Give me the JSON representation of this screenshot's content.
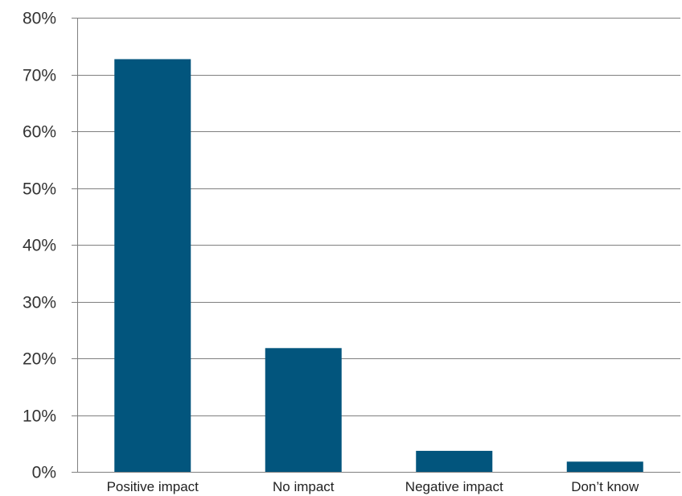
{
  "chart_data": {
    "type": "bar",
    "categories": [
      "Positive impact",
      "No impact",
      "Negative impact",
      "Don’t know"
    ],
    "values": [
      72.7,
      21.8,
      3.7,
      1.8
    ],
    "ylim": [
      0,
      80
    ],
    "yticks": [
      0,
      10,
      20,
      30,
      40,
      50,
      60,
      70,
      80
    ],
    "ytick_labels": [
      "0%",
      "10%",
      "20%",
      "30%",
      "40%",
      "50%",
      "60%",
      "70%",
      "80%"
    ],
    "grid": true,
    "legend": "none",
    "bar_color": "#02557d"
  }
}
